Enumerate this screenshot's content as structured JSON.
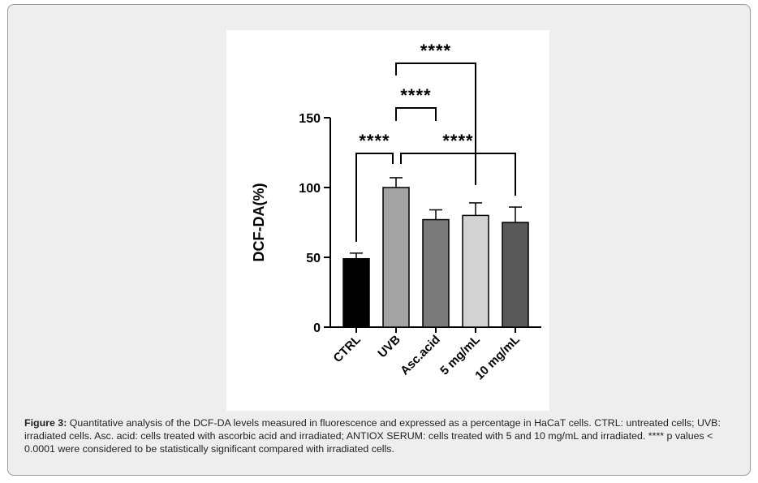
{
  "caption": {
    "label": "Figure 3:",
    "text": " Quantitative analysis of the DCF-DA levels measured in fluorescence and expressed as a percentage in HaCaT cells. CTRL: untreated cells; UVB: irradiated cells. Asc. acid: cells treated with ascorbic acid and irradiated; ANTIOX SERUM: cells treated with 5 and 10 mg/mL and irradiated. **** p values < 0.0001 were considered to be statistically significant compared with irradiated cells."
  },
  "chart_data": {
    "type": "bar",
    "title": "",
    "xlabel": "",
    "ylabel": "DCF-DA(%)",
    "categories": [
      "CTRL",
      "UVB",
      "Asc.acid",
      "5 mg/mL",
      "10 mg/mL"
    ],
    "values": [
      49,
      100,
      77,
      80,
      75
    ],
    "errors": [
      4,
      7,
      7,
      9,
      11
    ],
    "bar_colors": [
      "#000000",
      "#a3a3a3",
      "#7b7b7b",
      "#d2d2d2",
      "#595959"
    ],
    "ylim": [
      0,
      150
    ],
    "yticks": [
      0,
      50,
      100,
      150
    ],
    "grid": false,
    "significance": [
      {
        "from": "CTRL",
        "to": "UVB",
        "label": "****"
      },
      {
        "from": "UVB",
        "to": "10 mg/mL",
        "label": "****"
      },
      {
        "from": "UVB",
        "to": "Asc.acid",
        "label": "****"
      },
      {
        "from": "UVB",
        "to": "5 mg/mL",
        "label": "****"
      }
    ]
  }
}
